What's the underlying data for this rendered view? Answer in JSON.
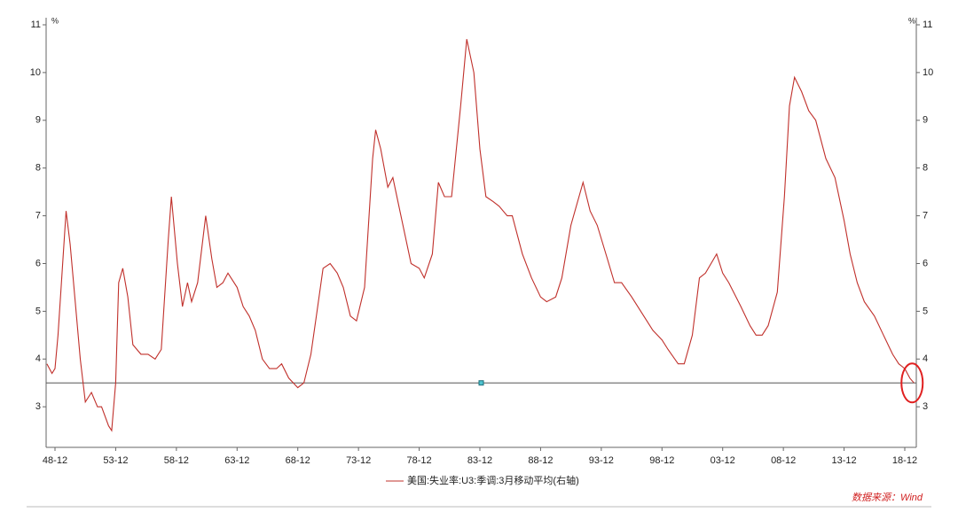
{
  "chart_data": {
    "type": "line",
    "x": [
      "48-04",
      "48-09",
      "48-12",
      "49-03",
      "49-11",
      "50-03",
      "50-08",
      "51-01",
      "51-06",
      "51-12",
      "52-06",
      "52-10",
      "53-05",
      "53-08",
      "53-12",
      "54-03",
      "54-07",
      "54-12",
      "55-05",
      "56-01",
      "56-08",
      "57-03",
      "57-09",
      "58-04",
      "58-07",
      "59-01",
      "59-06",
      "59-11",
      "60-03",
      "60-09",
      "61-05",
      "61-11",
      "62-04",
      "62-10",
      "63-03",
      "63-12",
      "64-06",
      "64-12",
      "65-06",
      "66-01",
      "66-08",
      "67-03",
      "67-08",
      "68-03",
      "68-12",
      "69-06",
      "70-01",
      "70-07",
      "71-01",
      "71-08",
      "72-03",
      "72-09",
      "73-04",
      "73-10",
      "74-06",
      "75-02",
      "75-05",
      "75-10",
      "76-05",
      "76-10",
      "77-06",
      "78-04",
      "78-12",
      "79-05",
      "80-01",
      "80-07",
      "81-01",
      "81-08",
      "82-05",
      "82-11",
      "83-06",
      "83-12",
      "84-06",
      "85-01",
      "85-07",
      "86-03",
      "86-08",
      "87-06",
      "88-03",
      "88-12",
      "89-06",
      "90-03",
      "90-09",
      "91-06",
      "92-06",
      "93-01",
      "93-08",
      "94-06",
      "95-01",
      "95-08",
      "96-06",
      "97-06",
      "98-03",
      "98-12",
      "99-06",
      "00-04",
      "00-10",
      "01-06",
      "02-01",
      "02-07",
      "03-06",
      "03-12",
      "04-06",
      "05-06",
      "06-03",
      "06-09",
      "07-03",
      "07-09",
      "08-06",
      "09-01",
      "09-06",
      "09-11",
      "10-06",
      "11-01",
      "11-08",
      "12-06",
      "13-03",
      "13-12",
      "14-06",
      "15-01",
      "15-08",
      "16-06",
      "17-03",
      "17-12",
      "18-06",
      "18-12",
      "19-05",
      "19-09"
    ],
    "series": [
      {
        "name": "美国:失业率:U3:季调:3月移动平均(右轴)",
        "color": "#c0302b",
        "axis": "y2",
        "values": [
          3.9,
          3.7,
          3.8,
          4.5,
          7.1,
          6.4,
          5.2,
          4.0,
          3.1,
          3.3,
          3.0,
          3.0,
          2.6,
          2.5,
          3.5,
          5.6,
          5.9,
          5.3,
          4.3,
          4.1,
          4.1,
          4.0,
          4.2,
          6.5,
          7.4,
          6.0,
          5.1,
          5.6,
          5.2,
          5.6,
          7.0,
          6.1,
          5.5,
          5.6,
          5.8,
          5.5,
          5.1,
          4.9,
          4.6,
          4.0,
          3.8,
          3.8,
          3.9,
          3.6,
          3.4,
          3.5,
          4.1,
          5.0,
          5.9,
          6.0,
          5.8,
          5.5,
          4.9,
          4.8,
          5.5,
          8.2,
          8.8,
          8.4,
          7.6,
          7.8,
          7.0,
          6.0,
          5.9,
          5.7,
          6.2,
          7.7,
          7.4,
          7.4,
          9.3,
          10.7,
          10.0,
          8.4,
          7.4,
          7.3,
          7.2,
          7.0,
          7.0,
          6.2,
          5.7,
          5.3,
          5.2,
          5.3,
          5.7,
          6.8,
          7.7,
          7.1,
          6.8,
          6.1,
          5.6,
          5.6,
          5.3,
          4.9,
          4.6,
          4.4,
          4.2,
          3.9,
          3.9,
          4.5,
          5.7,
          5.8,
          6.2,
          5.8,
          5.6,
          5.1,
          4.7,
          4.5,
          4.5,
          4.7,
          5.4,
          7.4,
          9.3,
          9.9,
          9.6,
          9.2,
          9.0,
          8.2,
          7.8,
          6.9,
          6.2,
          5.6,
          5.2,
          4.9,
          4.5,
          4.1,
          3.9,
          3.8,
          3.6,
          3.5
        ]
      }
    ],
    "xticks": [
      "48-12",
      "53-12",
      "58-12",
      "63-12",
      "68-12",
      "73-12",
      "78-12",
      "83-12",
      "88-12",
      "93-12",
      "98-12",
      "03-12",
      "08-12",
      "13-12",
      "18-12"
    ],
    "ylim": [
      2.15,
      11
    ],
    "yticks": [
      3,
      4,
      5,
      6,
      7,
      8,
      9,
      10,
      11
    ],
    "y2lim": [
      2.15,
      11
    ],
    "y2ticks": [
      3,
      4,
      5,
      6,
      7,
      8,
      9,
      10,
      11
    ],
    "y_unit": "%",
    "y2_unit": "%",
    "reference_line": 3.5,
    "source": "数据来源：Wind"
  }
}
